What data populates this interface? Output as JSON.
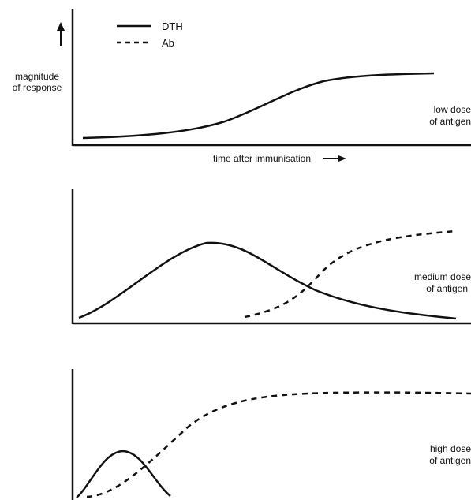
{
  "legend": {
    "solid_label": "DTH",
    "dashed_label": "Ab"
  },
  "axes": {
    "y_label_line1": "magnitude",
    "y_label_line2": "of response",
    "x_label": "time after immunisation"
  },
  "panels": [
    {
      "id": "low",
      "label_line1": "low dose",
      "label_line2": "of antigen",
      "curves": [
        "DTH"
      ]
    },
    {
      "id": "medium",
      "label_line1": "medium dose",
      "label_line2": "of antigen",
      "curves": [
        "DTH",
        "Ab"
      ]
    },
    {
      "id": "high",
      "label_line1": "high dose",
      "label_line2": "of antigen",
      "curves": [
        "DTH",
        "Ab"
      ]
    }
  ],
  "colors": {
    "line": "#111111",
    "background": "#ffffff"
  }
}
